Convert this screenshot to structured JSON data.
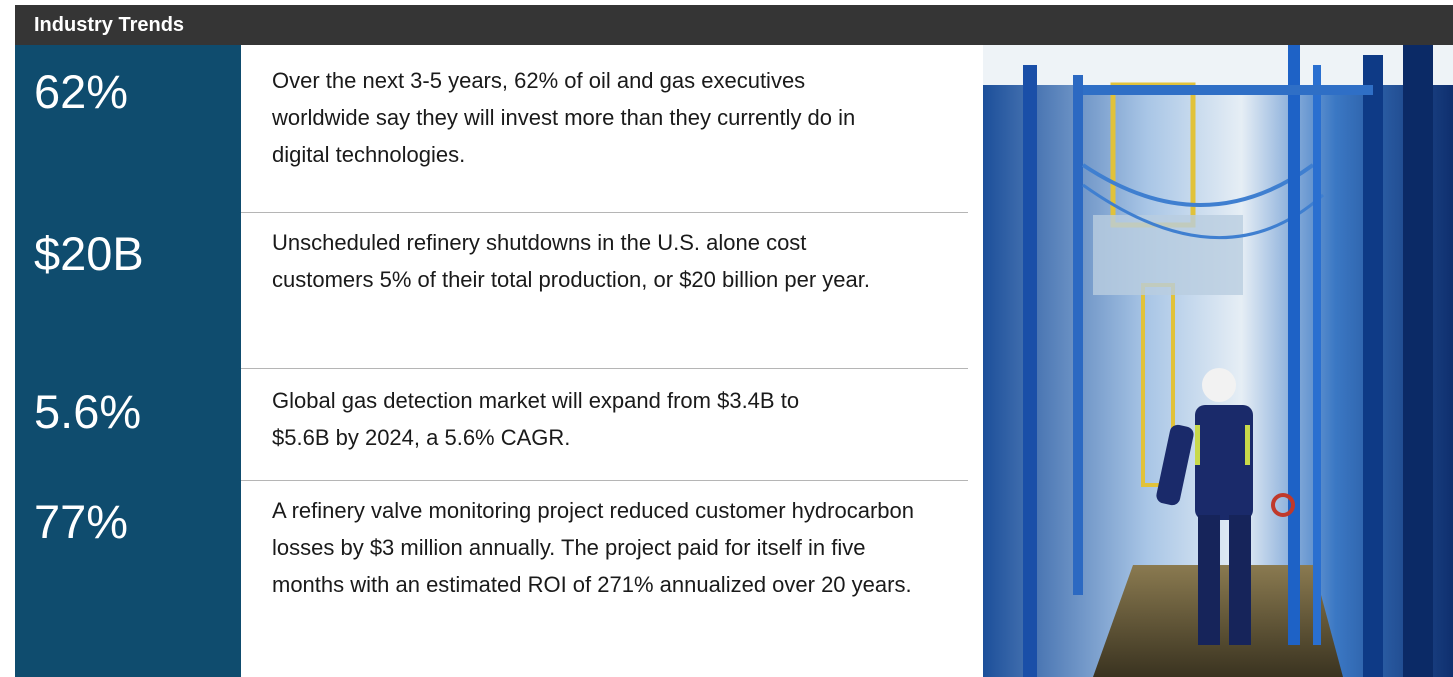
{
  "header": {
    "title": "Industry Trends"
  },
  "rows": [
    {
      "stat": "62%",
      "text": "Over the next 3-5 years, 62% of oil and gas executives worldwide say they will invest more than they currently do in digital technologies."
    },
    {
      "stat": "$20B",
      "text": "Unscheduled refinery shutdowns in the U.S. alone cost customers 5% of their total production, or $20 billion per year."
    },
    {
      "stat": "5.6%",
      "text": "Global gas detection market will expand from $3.4B to $5.6B by 2024, a 5.6% CAGR."
    },
    {
      "stat": "77%",
      "text": "A refinery valve monitoring project reduced customer hydrocarbon losses by $3 million annually. The project paid for itself in five months with an estimated ROI of 271% annualized over 20 years."
    }
  ]
}
